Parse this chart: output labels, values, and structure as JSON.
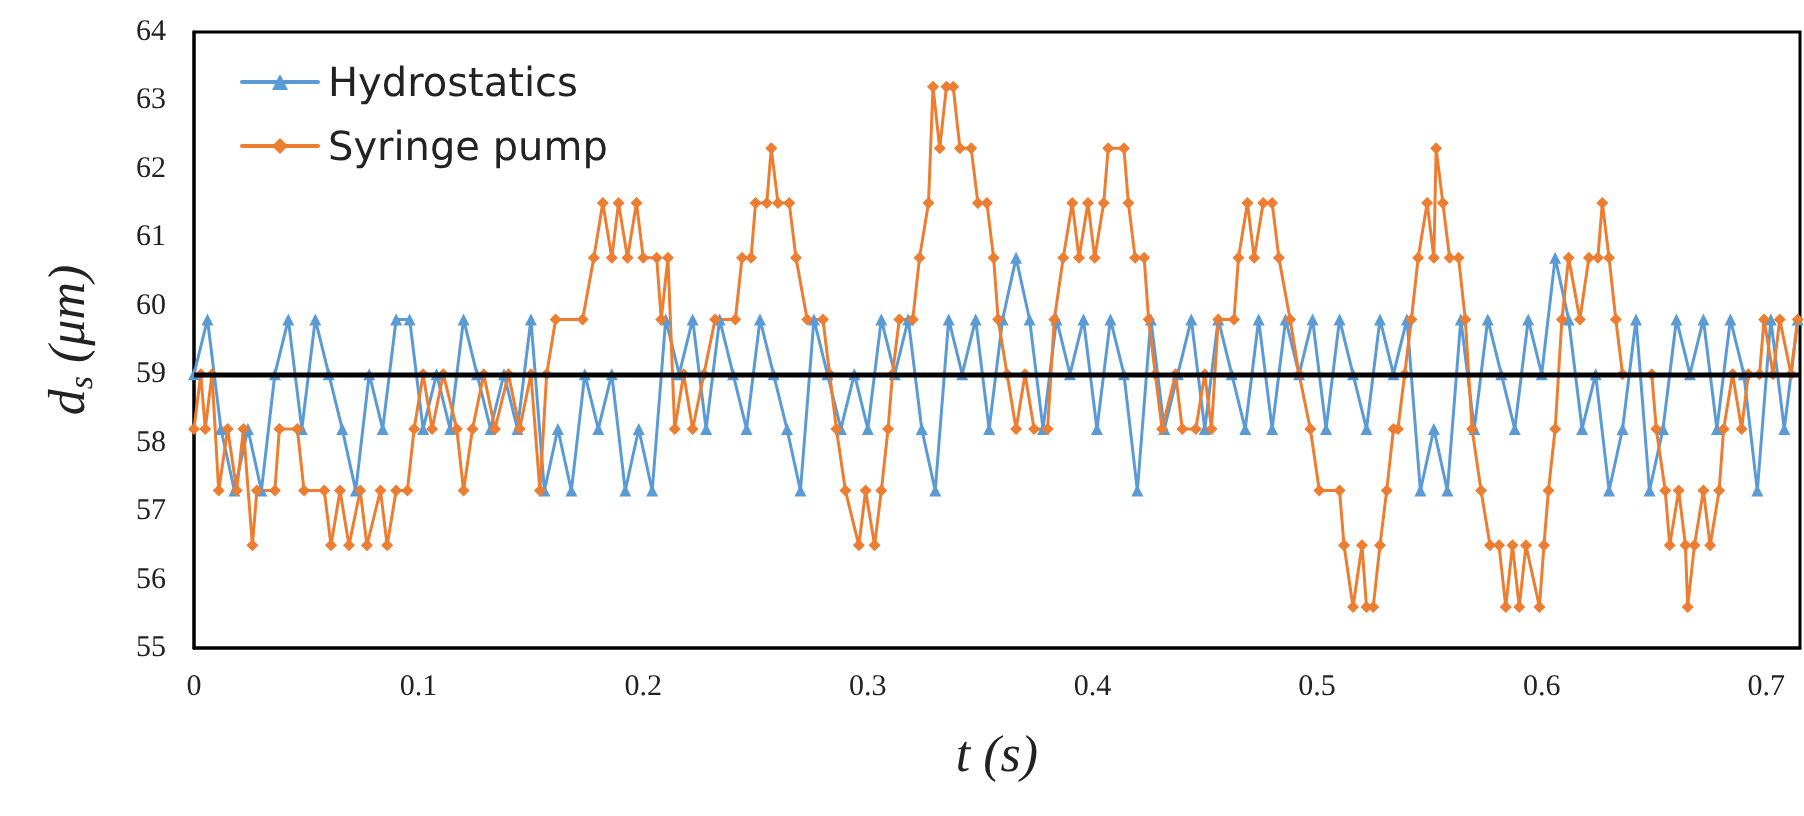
{
  "chart_data": {
    "type": "line",
    "xlabel": "t (s)",
    "ylabel": "d$_{s}$ (μm)",
    "xlim": [
      0,
      0.715
    ],
    "xticks": [
      0,
      0.1,
      0.2,
      0.3,
      0.4,
      0.5,
      0.6,
      0.7
    ],
    "ylim": [
      55,
      64
    ],
    "yticks": [
      55,
      56,
      57,
      58,
      59,
      60,
      61,
      62,
      63,
      64
    ],
    "grid": false,
    "legend": "top left",
    "line_style": "solid",
    "ref_lines": [
      {
        "axis": "y",
        "value": 59,
        "color": "#000000"
      }
    ],
    "series": [
      {
        "name": "Hydrostatics",
        "color": "#5b9bd5",
        "marker": "triangle",
        "x": [
          0,
          0.006,
          0.012,
          0.018,
          0.024,
          0.03,
          0.036,
          0.042,
          0.048,
          0.054,
          0.06,
          0.066,
          0.072,
          0.078,
          0.084,
          0.09,
          0.096,
          0.102,
          0.108,
          0.114,
          0.12,
          0.126,
          0.132,
          0.138,
          0.144,
          0.15,
          0.156,
          0.162,
          0.168,
          0.174,
          0.18,
          0.186,
          0.192,
          0.198,
          0.204,
          0.21,
          0.216,
          0.222,
          0.228,
          0.234,
          0.24,
          0.246,
          0.252,
          0.258,
          0.264,
          0.27,
          0.276,
          0.282,
          0.288,
          0.294,
          0.3,
          0.306,
          0.312,
          0.318,
          0.324,
          0.33,
          0.336,
          0.342,
          0.348,
          0.354,
          0.36,
          0.366,
          0.372,
          0.378,
          0.384,
          0.39,
          0.396,
          0.402,
          0.408,
          0.414,
          0.42,
          0.426,
          0.432,
          0.438,
          0.444,
          0.45,
          0.456,
          0.462,
          0.468,
          0.474,
          0.48,
          0.486,
          0.492,
          0.498,
          0.504,
          0.51,
          0.516,
          0.522,
          0.528,
          0.534,
          0.54,
          0.546,
          0.552,
          0.558,
          0.564,
          0.57,
          0.576,
          0.582,
          0.588,
          0.594,
          0.6,
          0.606,
          0.612,
          0.618,
          0.624,
          0.63,
          0.636,
          0.642,
          0.648,
          0.654,
          0.66,
          0.666,
          0.672,
          0.678,
          0.684,
          0.69,
          0.696,
          0.702,
          0.708,
          0.714
        ],
        "values": [
          59.0,
          59.8,
          58.2,
          57.3,
          58.2,
          57.3,
          59.0,
          59.8,
          58.2,
          59.8,
          59.0,
          58.2,
          57.3,
          59.0,
          58.2,
          59.8,
          59.8,
          58.2,
          59.0,
          58.2,
          59.8,
          59.0,
          58.2,
          59.0,
          58.2,
          59.8,
          57.3,
          58.2,
          57.3,
          59.0,
          58.2,
          59.0,
          57.3,
          58.2,
          57.3,
          59.8,
          59.0,
          59.8,
          58.2,
          59.8,
          59.0,
          58.2,
          59.8,
          59.0,
          58.2,
          57.3,
          59.8,
          59.0,
          58.2,
          59.0,
          58.2,
          59.8,
          59.0,
          59.8,
          58.2,
          57.3,
          59.8,
          59.0,
          59.8,
          58.2,
          59.8,
          60.7,
          59.8,
          58.2,
          59.8,
          59.0,
          59.8,
          58.2,
          59.8,
          59.0,
          57.3,
          59.8,
          58.2,
          59.0,
          59.8,
          58.2,
          59.8,
          59.0,
          58.2,
          59.8,
          58.2,
          59.8,
          59.0,
          59.8,
          58.2,
          59.8,
          59.0,
          58.2,
          59.8,
          59.0,
          59.8,
          57.3,
          58.2,
          57.3,
          59.8,
          58.2,
          59.8,
          59.0,
          58.2,
          59.8,
          59.0,
          60.7,
          59.8,
          58.2,
          59.0,
          57.3,
          58.2,
          59.8,
          57.3,
          58.2,
          59.8,
          59.0,
          59.8,
          58.2,
          59.8,
          59.0,
          57.3,
          59.8,
          58.2,
          59.8
        ]
      },
      {
        "name": "Syringe pump",
        "color": "#ed7d31",
        "marker": "diamond",
        "x": [
          0,
          0.003,
          0.005,
          0.008,
          0.011,
          0.015,
          0.019,
          0.022,
          0.026,
          0.028,
          0.036,
          0.038,
          0.046,
          0.049,
          0.058,
          0.061,
          0.065,
          0.069,
          0.074,
          0.077,
          0.083,
          0.086,
          0.09,
          0.095,
          0.098,
          0.102,
          0.106,
          0.111,
          0.117,
          0.12,
          0.124,
          0.129,
          0.134,
          0.14,
          0.145,
          0.15,
          0.154,
          0.157,
          0.161,
          0.173,
          0.178,
          0.182,
          0.186,
          0.189,
          0.193,
          0.197,
          0.2,
          0.206,
          0.208,
          0.211,
          0.214,
          0.218,
          0.222,
          0.227,
          0.232,
          0.241,
          0.244,
          0.248,
          0.25,
          0.255,
          0.257,
          0.26,
          0.265,
          0.268,
          0.273,
          0.28,
          0.283,
          0.286,
          0.29,
          0.296,
          0.299,
          0.303,
          0.306,
          0.309,
          0.311,
          0.314,
          0.32,
          0.323,
          0.327,
          0.329,
          0.332,
          0.335,
          0.338,
          0.341,
          0.346,
          0.349,
          0.353,
          0.356,
          0.358,
          0.362,
          0.366,
          0.37,
          0.374,
          0.38,
          0.383,
          0.387,
          0.391,
          0.394,
          0.398,
          0.401,
          0.405,
          0.407,
          0.414,
          0.416,
          0.419,
          0.423,
          0.425,
          0.428,
          0.431,
          0.437,
          0.44,
          0.446,
          0.45,
          0.453,
          0.456,
          0.463,
          0.465,
          0.469,
          0.472,
          0.476,
          0.48,
          0.483,
          0.488,
          0.492,
          0.497,
          0.501,
          0.51,
          0.512,
          0.516,
          0.52,
          0.522,
          0.525,
          0.528,
          0.531,
          0.534,
          0.536,
          0.539,
          0.542,
          0.545,
          0.549,
          0.552,
          0.553,
          0.556,
          0.559,
          0.563,
          0.566,
          0.569,
          0.573,
          0.577,
          0.581,
          0.584,
          0.587,
          0.59,
          0.593,
          0.599,
          0.601,
          0.603,
          0.606,
          0.609,
          0.612,
          0.617,
          0.621,
          0.625,
          0.627,
          0.63,
          0.633,
          0.636,
          0.649,
          0.651,
          0.655,
          0.657,
          0.661,
          0.664,
          0.665,
          0.668,
          0.672,
          0.675,
          0.679,
          0.681,
          0.685,
          0.689,
          0.692,
          0.697,
          0.699,
          0.703,
          0.706,
          0.711,
          0.714
        ],
        "values": [
          58.2,
          59.0,
          58.2,
          59.0,
          57.3,
          58.2,
          57.3,
          58.2,
          56.5,
          57.3,
          57.3,
          58.2,
          58.2,
          57.3,
          57.3,
          56.5,
          57.3,
          56.5,
          57.3,
          56.5,
          57.3,
          56.5,
          57.3,
          57.3,
          58.2,
          59.0,
          58.2,
          59.0,
          58.2,
          57.3,
          58.2,
          59.0,
          58.2,
          59.0,
          58.2,
          59.0,
          57.3,
          59.0,
          59.8,
          59.8,
          60.7,
          61.5,
          60.7,
          61.5,
          60.7,
          61.5,
          60.7,
          60.7,
          59.8,
          60.7,
          58.2,
          59.0,
          58.2,
          59.0,
          59.8,
          59.8,
          60.7,
          60.7,
          61.5,
          61.5,
          62.3,
          61.5,
          61.5,
          60.7,
          59.8,
          59.8,
          59.0,
          58.2,
          57.3,
          56.5,
          57.3,
          56.5,
          57.3,
          58.2,
          59.0,
          59.8,
          59.8,
          60.7,
          61.5,
          63.2,
          62.3,
          63.2,
          63.2,
          62.3,
          62.3,
          61.5,
          61.5,
          60.7,
          59.8,
          59.0,
          58.2,
          59.0,
          58.2,
          58.2,
          59.8,
          60.7,
          61.5,
          60.7,
          61.5,
          60.7,
          61.5,
          62.3,
          62.3,
          61.5,
          60.7,
          60.7,
          59.8,
          59.0,
          58.2,
          59.0,
          58.2,
          58.2,
          59.0,
          58.2,
          59.8,
          59.8,
          60.7,
          61.5,
          60.7,
          61.5,
          61.5,
          60.7,
          59.8,
          59.0,
          58.2,
          57.3,
          57.3,
          56.5,
          55.6,
          56.5,
          55.6,
          55.6,
          56.5,
          57.3,
          58.2,
          58.2,
          59.0,
          59.8,
          60.7,
          61.5,
          60.7,
          62.3,
          61.5,
          60.7,
          60.7,
          59.8,
          58.2,
          57.3,
          56.5,
          56.5,
          55.6,
          56.5,
          55.6,
          56.5,
          55.6,
          56.5,
          57.3,
          58.2,
          59.8,
          60.7,
          59.8,
          60.7,
          60.7,
          61.5,
          60.7,
          59.8,
          59.0,
          59.0,
          58.2,
          57.3,
          56.5,
          57.3,
          56.5,
          55.6,
          56.5,
          57.3,
          56.5,
          57.3,
          58.2,
          59.0,
          58.2,
          59.0,
          59.0,
          59.8,
          59.0,
          59.8,
          59.0,
          59.8
        ]
      }
    ]
  }
}
